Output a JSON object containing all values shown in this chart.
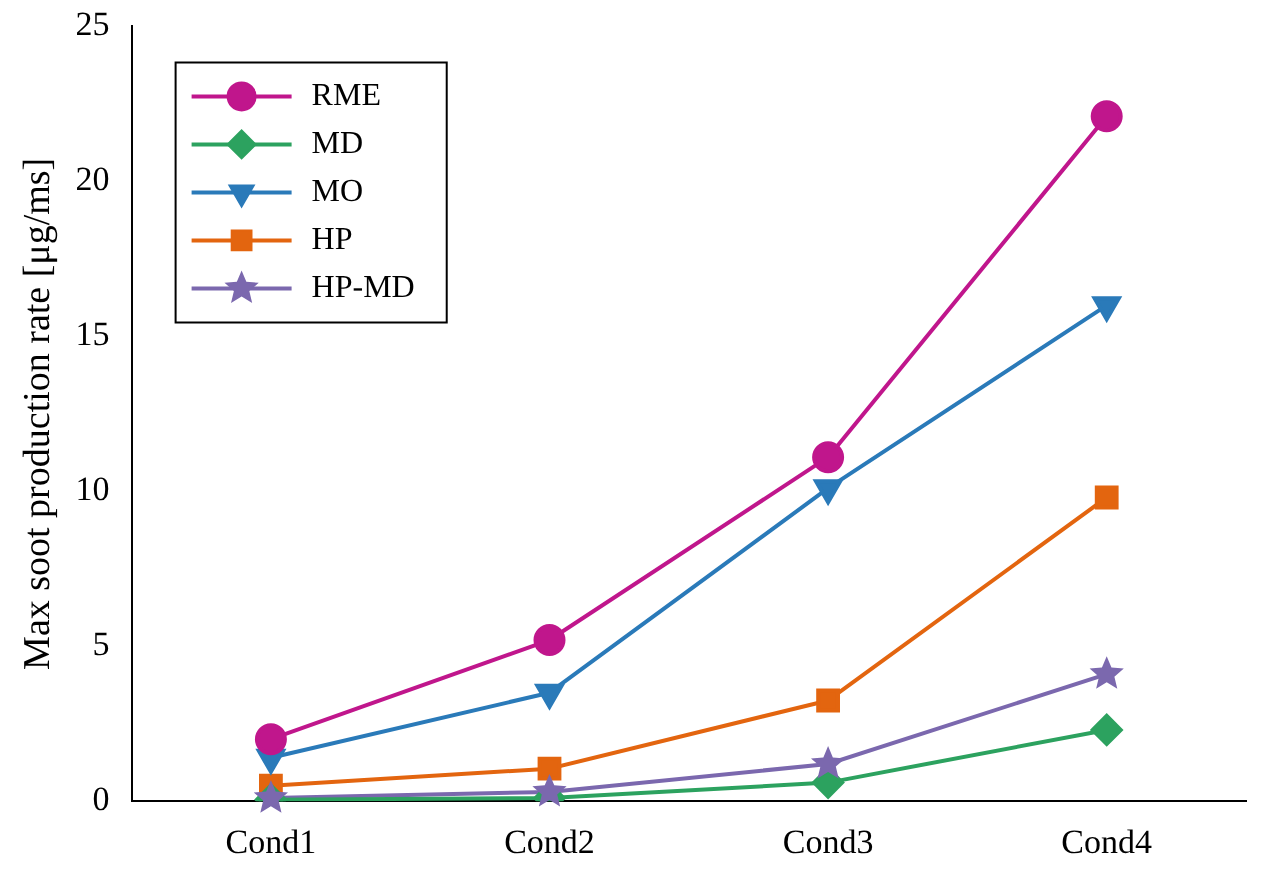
{
  "chart_data": {
    "type": "line",
    "ylabel": "Max soot production rate [μg/ms]",
    "categories": [
      "Cond1",
      "Cond2",
      "Cond3",
      "Cond4"
    ],
    "ylim": [
      0,
      25
    ],
    "yticks": [
      0,
      5,
      10,
      15,
      20,
      25
    ],
    "grid": false,
    "legend": "top left",
    "line_style": "solid",
    "series": [
      {
        "name": "RME",
        "color": "#c0168c",
        "marker": "circle",
        "values": [
          2.0,
          5.2,
          11.1,
          22.1
        ]
      },
      {
        "name": "MD",
        "color": "#2ca25f",
        "marker": "diamond",
        "values": [
          0.05,
          0.1,
          0.6,
          2.3
        ]
      },
      {
        "name": "MO",
        "color": "#2a7ab9",
        "marker": "triangle-down",
        "values": [
          1.4,
          3.5,
          10.1,
          16.0
        ]
      },
      {
        "name": "HP",
        "color": "#e3650f",
        "marker": "square",
        "values": [
          0.5,
          1.05,
          3.25,
          9.8
        ]
      },
      {
        "name": "HP-MD",
        "color": "#7b68ae",
        "marker": "star",
        "values": [
          0.1,
          0.3,
          1.2,
          4.1
        ]
      }
    ]
  }
}
